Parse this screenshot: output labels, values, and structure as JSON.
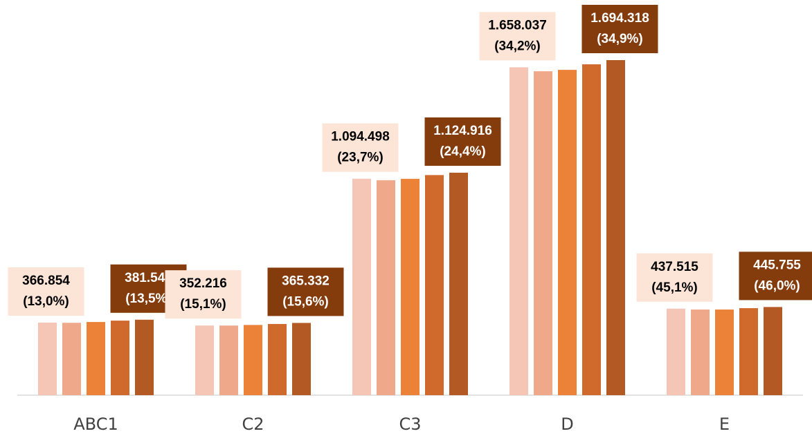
{
  "chart_data": {
    "type": "bar",
    "categories": [
      "ABC1",
      "C2",
      "C3",
      "D",
      "E"
    ],
    "series": [
      {
        "color": "#f5c6b5",
        "label_background": "#fce4d6",
        "label_text_color": "#000000",
        "values": [
          366854,
          352216,
          1094498,
          1658037,
          437515
        ],
        "value_labels": [
          [
            "366.854",
            "(13,0%)"
          ],
          [
            "352.216",
            "(15,1%)"
          ],
          [
            "1.094.498",
            "(23,7%)"
          ],
          [
            "1.658.037",
            "(34,2%)"
          ],
          [
            "437.515",
            "(45,1%)"
          ]
        ]
      },
      {
        "color": "#f0a88a",
        "values": [
          366000,
          352000,
          1087000,
          1638000,
          433000
        ]
      },
      {
        "color": "#ec8238",
        "values": [
          370000,
          355000,
          1094000,
          1645000,
          433000
        ]
      },
      {
        "color": "#d06a2c",
        "values": [
          377000,
          360000,
          1113000,
          1673000,
          440000
        ]
      },
      {
        "color": "#b35a24",
        "label_background": "#843c0c",
        "label_text_color": "#ffffff",
        "values": [
          381548,
          365332,
          1124916,
          1694318,
          445755
        ],
        "value_labels": [
          [
            "381.548",
            "(13,5%)"
          ],
          [
            "365.332",
            "(15,6%)"
          ],
          [
            "1.124.916",
            "(24,4%)"
          ],
          [
            "1.694.318",
            "(34,9%)"
          ],
          [
            "445.755",
            "(46,0%)"
          ]
        ]
      }
    ]
  }
}
